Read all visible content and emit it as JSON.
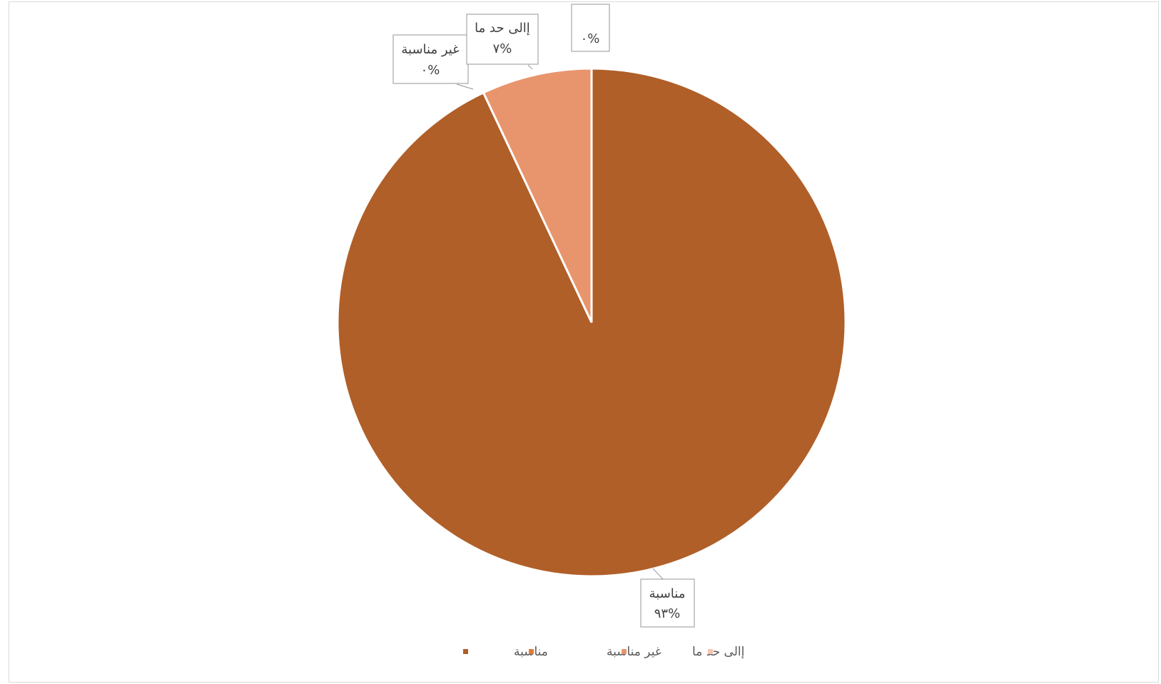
{
  "chart_data": {
    "type": "pie",
    "start_angle_deg": 0,
    "direction": "clockwise",
    "slices": [
      {
        "name": "مناسبة",
        "value": 93,
        "label_name": "مناسبة",
        "label_pct": "%٩٣",
        "color": "#B05F28"
      },
      {
        "name": "غير مناسبة",
        "value": 0,
        "label_name": "غير مناسبة",
        "label_pct": "%٠",
        "color": "#E07B39"
      },
      {
        "name": "إالى حد ما",
        "value": 7,
        "label_name": "إالى حد ما",
        "label_pct": "%٧",
        "color": "#E8956D"
      },
      {
        "name": "",
        "value": 0,
        "label_name": "",
        "label_pct": "%٠",
        "color": "#F4C7B0"
      }
    ],
    "legend": {
      "position": "bottom",
      "entries": [
        "مناسبة",
        "غير مناسبة",
        "إالى حد ما",
        ""
      ]
    }
  }
}
